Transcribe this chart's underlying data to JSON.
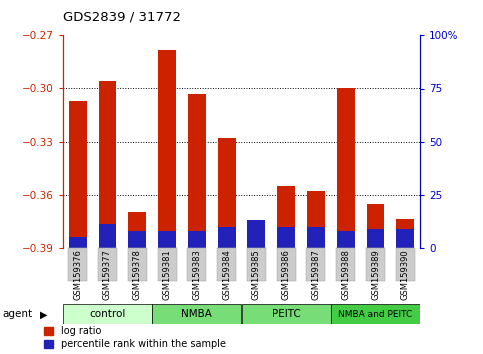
{
  "title": "GDS2839 / 31772",
  "categories": [
    "GSM159376",
    "GSM159377",
    "GSM159378",
    "GSM159381",
    "GSM159383",
    "GSM159384",
    "GSM159385",
    "GSM159386",
    "GSM159387",
    "GSM159388",
    "GSM159389",
    "GSM159390"
  ],
  "log_ratio": [
    -0.307,
    -0.296,
    -0.37,
    -0.278,
    -0.303,
    -0.328,
    -0.389,
    -0.355,
    -0.358,
    -0.3,
    -0.365,
    -0.374
  ],
  "percentile_rank": [
    5,
    11,
    8,
    8,
    8,
    10,
    13,
    10,
    10,
    8,
    9,
    9
  ],
  "ylim_left": [
    -0.39,
    -0.27
  ],
  "ylim_right": [
    0,
    100
  ],
  "yticks_left": [
    -0.39,
    -0.36,
    -0.33,
    -0.3,
    -0.27
  ],
  "yticks_right": [
    0,
    25,
    50,
    75,
    100
  ],
  "ytick_labels_right": [
    "0",
    "25",
    "50",
    "75",
    "100%"
  ],
  "bar_color_red": "#CC2200",
  "bar_color_blue": "#2222BB",
  "bar_bottom": -0.39,
  "group_info": [
    {
      "label": "control",
      "start": 0,
      "end": 2,
      "color": "#ccffcc"
    },
    {
      "label": "NMBA",
      "start": 3,
      "end": 5,
      "color": "#77dd77"
    },
    {
      "label": "PEITC",
      "start": 6,
      "end": 8,
      "color": "#77dd77"
    },
    {
      "label": "NMBA and PEITC",
      "start": 9,
      "end": 11,
      "color": "#44cc44"
    }
  ],
  "left_axis_color": "#CC2200",
  "right_axis_color": "#0000CC",
  "grid_yticks": [
    -0.3,
    -0.33,
    -0.36
  ]
}
